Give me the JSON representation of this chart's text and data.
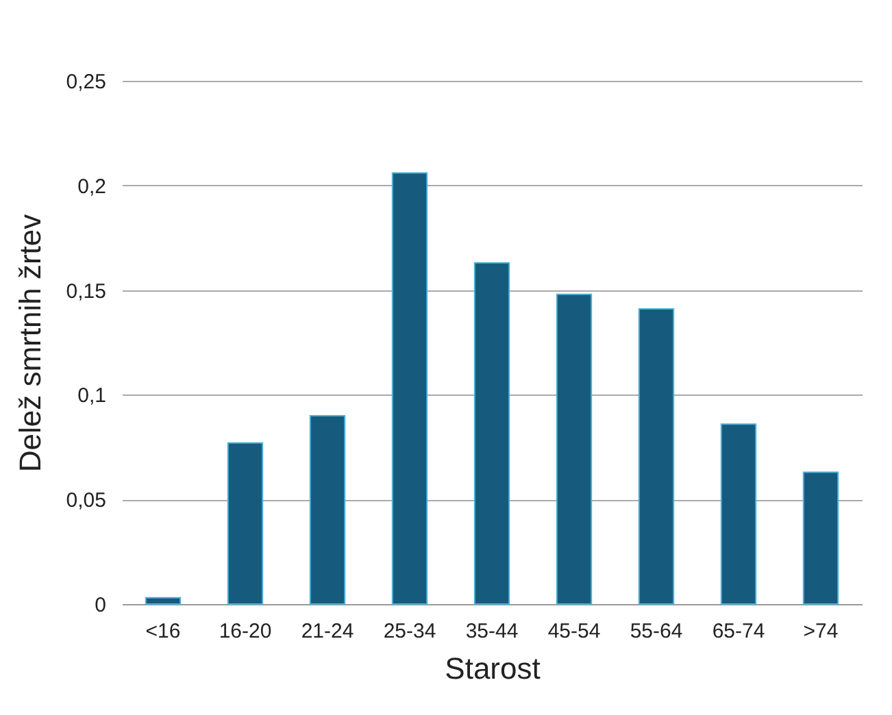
{
  "chart_data": {
    "type": "bar",
    "xlabel": "Starost",
    "ylabel": "Delež smrtnih žrtev",
    "categories": [
      "<16",
      "16-20",
      "21-24",
      "25-34",
      "35-44",
      "45-54",
      "55-64",
      "65-74",
      ">74"
    ],
    "values": [
      0.003,
      0.077,
      0.09,
      0.206,
      0.163,
      0.148,
      0.141,
      0.086,
      0.063
    ],
    "color": "#165b7e",
    "ylim": [
      0,
      0.25
    ],
    "yticks": [
      {
        "value": 0,
        "label": "0"
      },
      {
        "value": 0.05,
        "label": "0,05"
      },
      {
        "value": 0.1,
        "label": "0,1"
      },
      {
        "value": 0.15,
        "label": "0,15"
      },
      {
        "value": 0.2,
        "label": "0,2"
      },
      {
        "value": 0.25,
        "label": "0,25"
      }
    ],
    "grid": "y"
  }
}
